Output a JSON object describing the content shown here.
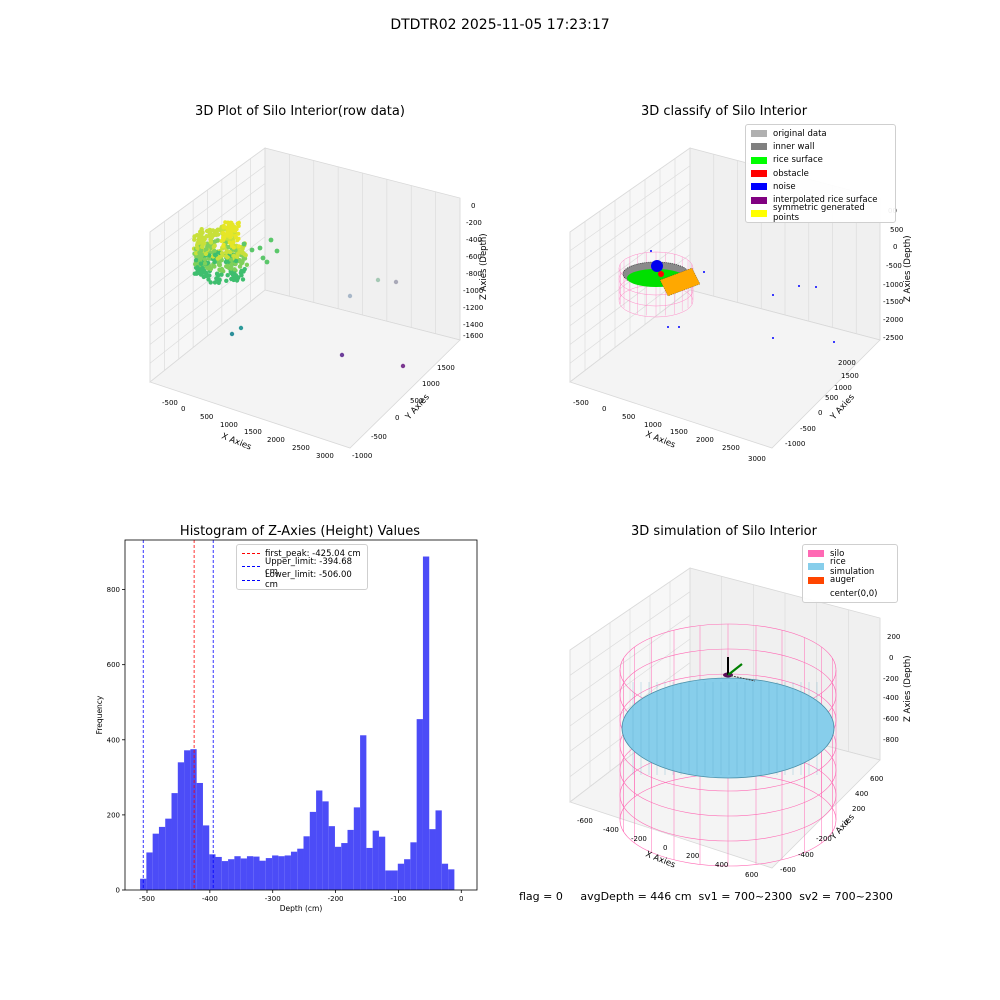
{
  "suptitle": "DTDTR02 2025-11-05 17:23:17",
  "status_text": "flag = 0     avgDepth = 446 cm  sv1 = 700~2300  sv2 = 700~2300",
  "chart_data": [
    {
      "type": "scatter",
      "title": "3D Plot of Silo Interior(row data)",
      "xlabel": "X Axies",
      "ylabel": "Y Axies",
      "zlabel": "Z Axies (Depth)",
      "x_ticks": [
        "-500",
        "0",
        "500",
        "1000",
        "1500",
        "2000",
        "2500",
        "3000"
      ],
      "y_ticks": [
        "-1000",
        "-500",
        "0",
        "500",
        "1000",
        "1500"
      ],
      "z_ticks": [
        "0",
        "-200",
        "-400",
        "-600",
        "-800",
        "-1000",
        "-1200",
        "-1400",
        "-1600"
      ],
      "grid": true
    },
    {
      "type": "scatter",
      "title": "3D classify of Silo Interior",
      "xlabel": "X Axies",
      "ylabel": "Y Axies",
      "zlabel": "Z Axies (Depth)",
      "x_ticks": [
        "-500",
        "0",
        "500",
        "1000",
        "1500",
        "2000",
        "2500",
        "3000"
      ],
      "y_ticks": [
        "-1000",
        "-500",
        "0",
        "500",
        "1000",
        "1500",
        "2000"
      ],
      "z_ticks": [
        "1000",
        "500",
        "0",
        "-500",
        "-1000",
        "-1500",
        "-2000",
        "-2500"
      ],
      "z_tick_visible_partial": "00",
      "legend": [
        {
          "label": "original data",
          "color": "#b0b0b0"
        },
        {
          "label": "inner wall",
          "color": "#808080"
        },
        {
          "label": "rice surface",
          "color": "#00ff00"
        },
        {
          "label": "obstacle",
          "color": "#ff0000"
        },
        {
          "label": "noise",
          "color": "#0000ff"
        },
        {
          "label": "interpolated rice surface",
          "color": "#800080"
        },
        {
          "label": "symmetric generated points",
          "color": "#ffff00"
        }
      ],
      "grid": true
    },
    {
      "type": "bar",
      "title": "Histogram of Z-Axies (Height) Values",
      "xlabel": "Depth (cm)",
      "ylabel": "Frequency",
      "x_ticks": [
        "-500",
        "-400",
        "-300",
        "-200",
        "-100",
        "0"
      ],
      "y_ticks": [
        "0",
        "200",
        "400",
        "600",
        "800"
      ],
      "xlim": [
        -535,
        25
      ],
      "ylim": [
        0,
        932
      ],
      "bar_color": "#4c4cf7",
      "bins": {
        "x_start": -511,
        "width": 10,
        "values": [
          30,
          100,
          150,
          168,
          190,
          258,
          340,
          372,
          375,
          285,
          172,
          95,
          88,
          77,
          82,
          90,
          84,
          90,
          89,
          78,
          85,
          92,
          90,
          92,
          102,
          110,
          143,
          208,
          265,
          236,
          170,
          115,
          125,
          160,
          220,
          412,
          112,
          158,
          142,
          52,
          52,
          70,
          82,
          127,
          455,
          888,
          162,
          212,
          70,
          55
        ]
      },
      "vlines": [
        {
          "label": "first_peak: -425.04 cm",
          "x": -425.04,
          "color": "#ff0000"
        },
        {
          "label": "Upper_limit: -394.68 cm",
          "x": -394.68,
          "color": "#0000ff"
        },
        {
          "label": "Lower_limit: -506.00 cm",
          "x": -506.0,
          "color": "#0000ff"
        }
      ],
      "grid": false
    },
    {
      "type": "scatter",
      "title": "3D simulation of Silo Interior",
      "xlabel": "X Axies",
      "ylabel": "Y Axies",
      "zlabel": "Z Axies (Depth)",
      "x_ticks": [
        "-600",
        "-400",
        "-200",
        "0",
        "200",
        "400",
        "600"
      ],
      "y_ticks": [
        "-600",
        "-400",
        "-200",
        "0",
        "200",
        "400",
        "600"
      ],
      "z_ticks": [
        "200",
        "0",
        "-200",
        "-400",
        "-600",
        "-800"
      ],
      "legend": [
        {
          "label": "silo",
          "color": "#ff69b4"
        },
        {
          "label": "rice simulation",
          "color": "#87ceeb"
        },
        {
          "label": "auger",
          "color": "#ff4500"
        },
        {
          "label": "center(0,0)",
          "color": ""
        }
      ],
      "grid": true
    }
  ]
}
